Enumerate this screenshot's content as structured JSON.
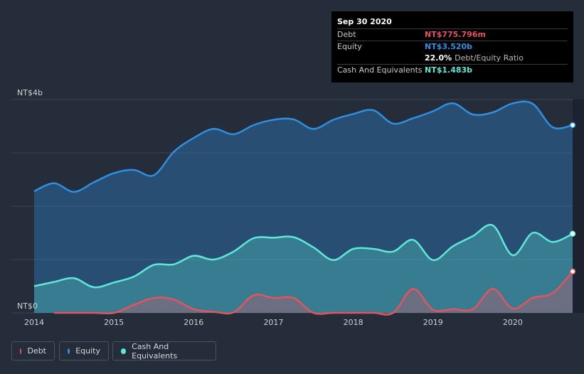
{
  "chart_data": {
    "type": "area",
    "title": "",
    "xlabel": "",
    "ylabel": "",
    "ylim": [
      0,
      4
    ],
    "y_unit": "NT$b",
    "y_tick_labels": [
      {
        "value": 4,
        "label": "NT$4b"
      },
      {
        "value": 0,
        "label": "NT$0"
      }
    ],
    "x_ticks": [
      2014,
      2015,
      2016,
      2017,
      2018,
      2019,
      2020
    ],
    "xlim": [
      2014.0,
      2020.75
    ],
    "grid": true,
    "series": [
      {
        "name": "Equity",
        "color": "#2f8fe0",
        "x": [
          2014.0,
          2014.25,
          2014.5,
          2014.75,
          2015.0,
          2015.25,
          2015.5,
          2015.75,
          2016.0,
          2016.25,
          2016.5,
          2016.75,
          2017.0,
          2017.25,
          2017.5,
          2017.75,
          2018.0,
          2018.25,
          2018.5,
          2018.75,
          2019.0,
          2019.25,
          2019.5,
          2019.75,
          2020.0,
          2020.25,
          2020.5,
          2020.75
        ],
        "values": [
          2.28,
          2.43,
          2.27,
          2.45,
          2.62,
          2.68,
          2.58,
          3.02,
          3.28,
          3.45,
          3.35,
          3.52,
          3.62,
          3.63,
          3.45,
          3.62,
          3.73,
          3.8,
          3.55,
          3.65,
          3.78,
          3.93,
          3.72,
          3.76,
          3.93,
          3.92,
          3.48,
          3.52
        ]
      },
      {
        "name": "Cash And Equivalents",
        "color": "#5ee8d8",
        "x": [
          2014.0,
          2014.25,
          2014.5,
          2014.75,
          2015.0,
          2015.25,
          2015.5,
          2015.75,
          2016.0,
          2016.25,
          2016.5,
          2016.75,
          2017.0,
          2017.25,
          2017.5,
          2017.75,
          2018.0,
          2018.25,
          2018.5,
          2018.75,
          2019.0,
          2019.25,
          2019.5,
          2019.75,
          2020.0,
          2020.25,
          2020.5,
          2020.75
        ],
        "values": [
          0.5,
          0.58,
          0.65,
          0.48,
          0.57,
          0.68,
          0.9,
          0.91,
          1.07,
          1.0,
          1.15,
          1.4,
          1.41,
          1.42,
          1.23,
          0.99,
          1.2,
          1.2,
          1.15,
          1.37,
          0.99,
          1.25,
          1.44,
          1.64,
          1.08,
          1.5,
          1.33,
          1.483
        ]
      },
      {
        "name": "Debt",
        "color": "#e4545e",
        "x": [
          2014.0,
          2014.25,
          2014.5,
          2014.75,
          2015.0,
          2015.25,
          2015.5,
          2015.75,
          2016.0,
          2016.25,
          2016.5,
          2016.75,
          2017.0,
          2017.25,
          2017.5,
          2017.75,
          2018.0,
          2018.25,
          2018.5,
          2018.75,
          2019.0,
          2019.25,
          2019.5,
          2019.75,
          2020.0,
          2020.25,
          2020.5,
          2020.75
        ],
        "values": [
          null,
          0.0,
          0.0,
          0.0,
          0.0,
          0.15,
          0.28,
          0.25,
          0.07,
          0.02,
          0.01,
          0.33,
          0.28,
          0.28,
          0.0,
          0.0,
          0.0,
          0.0,
          0.0,
          0.45,
          0.06,
          0.07,
          0.07,
          0.45,
          0.08,
          0.28,
          0.37,
          0.776
        ]
      }
    ]
  },
  "tooltip": {
    "date": "Sep 30 2020",
    "debt_label": "Debt",
    "debt_value": "NT$775.796m",
    "equity_label": "Equity",
    "equity_value": "NT$3.520b",
    "ratio_value": "22.0%",
    "ratio_label": "Debt/Equity Ratio",
    "cash_label": "Cash And Equivalents",
    "cash_value": "NT$1.483b"
  },
  "legend": {
    "debt": "Debt",
    "equity": "Equity",
    "cash": "Cash And Equivalents"
  },
  "colors": {
    "background": "#252c3a",
    "debt": "#e4545e",
    "equity": "#2f8fe0",
    "cash": "#5ee8d8"
  }
}
